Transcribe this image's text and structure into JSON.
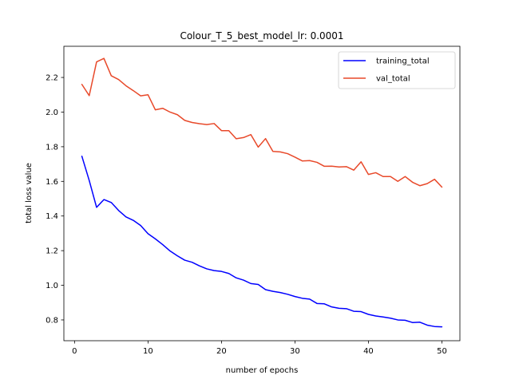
{
  "chart_data": {
    "type": "line",
    "title": "Colour_T_5_best_model_lr: 0.0001",
    "xlabel": "number of epochs",
    "ylabel": "total loss value",
    "xlim": [
      -1.45,
      52.45
    ],
    "ylim": [
      0.68,
      2.38
    ],
    "xticks": [
      0,
      10,
      20,
      30,
      40,
      50
    ],
    "yticks": [
      0.8,
      1.0,
      1.2,
      1.4,
      1.6,
      1.8,
      2.0,
      2.2
    ],
    "grid": false,
    "legend_position": "top-right",
    "x": [
      1,
      2,
      3,
      4,
      5,
      6,
      7,
      8,
      9,
      10,
      11,
      12,
      13,
      14,
      15,
      16,
      17,
      18,
      19,
      20,
      21,
      22,
      23,
      24,
      25,
      26,
      27,
      28,
      29,
      30,
      31,
      32,
      33,
      34,
      35,
      36,
      37,
      38,
      39,
      40,
      41,
      42,
      43,
      44,
      45,
      46,
      47,
      48,
      49,
      50
    ],
    "series": [
      {
        "name": "training_total",
        "color": "#0000ff",
        "values": [
          1.745,
          1.605,
          1.45,
          1.495,
          1.478,
          1.432,
          1.395,
          1.375,
          1.345,
          1.298,
          1.268,
          1.235,
          1.198,
          1.17,
          1.145,
          1.133,
          1.112,
          1.095,
          1.085,
          1.08,
          1.068,
          1.043,
          1.03,
          1.01,
          1.005,
          0.975,
          0.965,
          0.958,
          0.948,
          0.935,
          0.925,
          0.92,
          0.895,
          0.893,
          0.875,
          0.867,
          0.865,
          0.85,
          0.848,
          0.832,
          0.823,
          0.817,
          0.81,
          0.8,
          0.798,
          0.785,
          0.787,
          0.77,
          0.762,
          0.76
        ]
      },
      {
        "name": "val_total",
        "color": "#e8492a",
        "values": [
          2.16,
          2.095,
          2.29,
          2.31,
          2.21,
          2.188,
          2.152,
          2.124,
          2.094,
          2.1,
          2.013,
          2.022,
          2.0,
          1.985,
          1.952,
          1.94,
          1.933,
          1.928,
          1.934,
          1.893,
          1.893,
          1.846,
          1.853,
          1.87,
          1.798,
          1.847,
          1.773,
          1.77,
          1.76,
          1.74,
          1.718,
          1.72,
          1.71,
          1.687,
          1.688,
          1.683,
          1.685,
          1.665,
          1.713,
          1.64,
          1.65,
          1.628,
          1.628,
          1.6,
          1.628,
          1.595,
          1.575,
          1.587,
          1.612,
          1.567
        ]
      }
    ]
  }
}
